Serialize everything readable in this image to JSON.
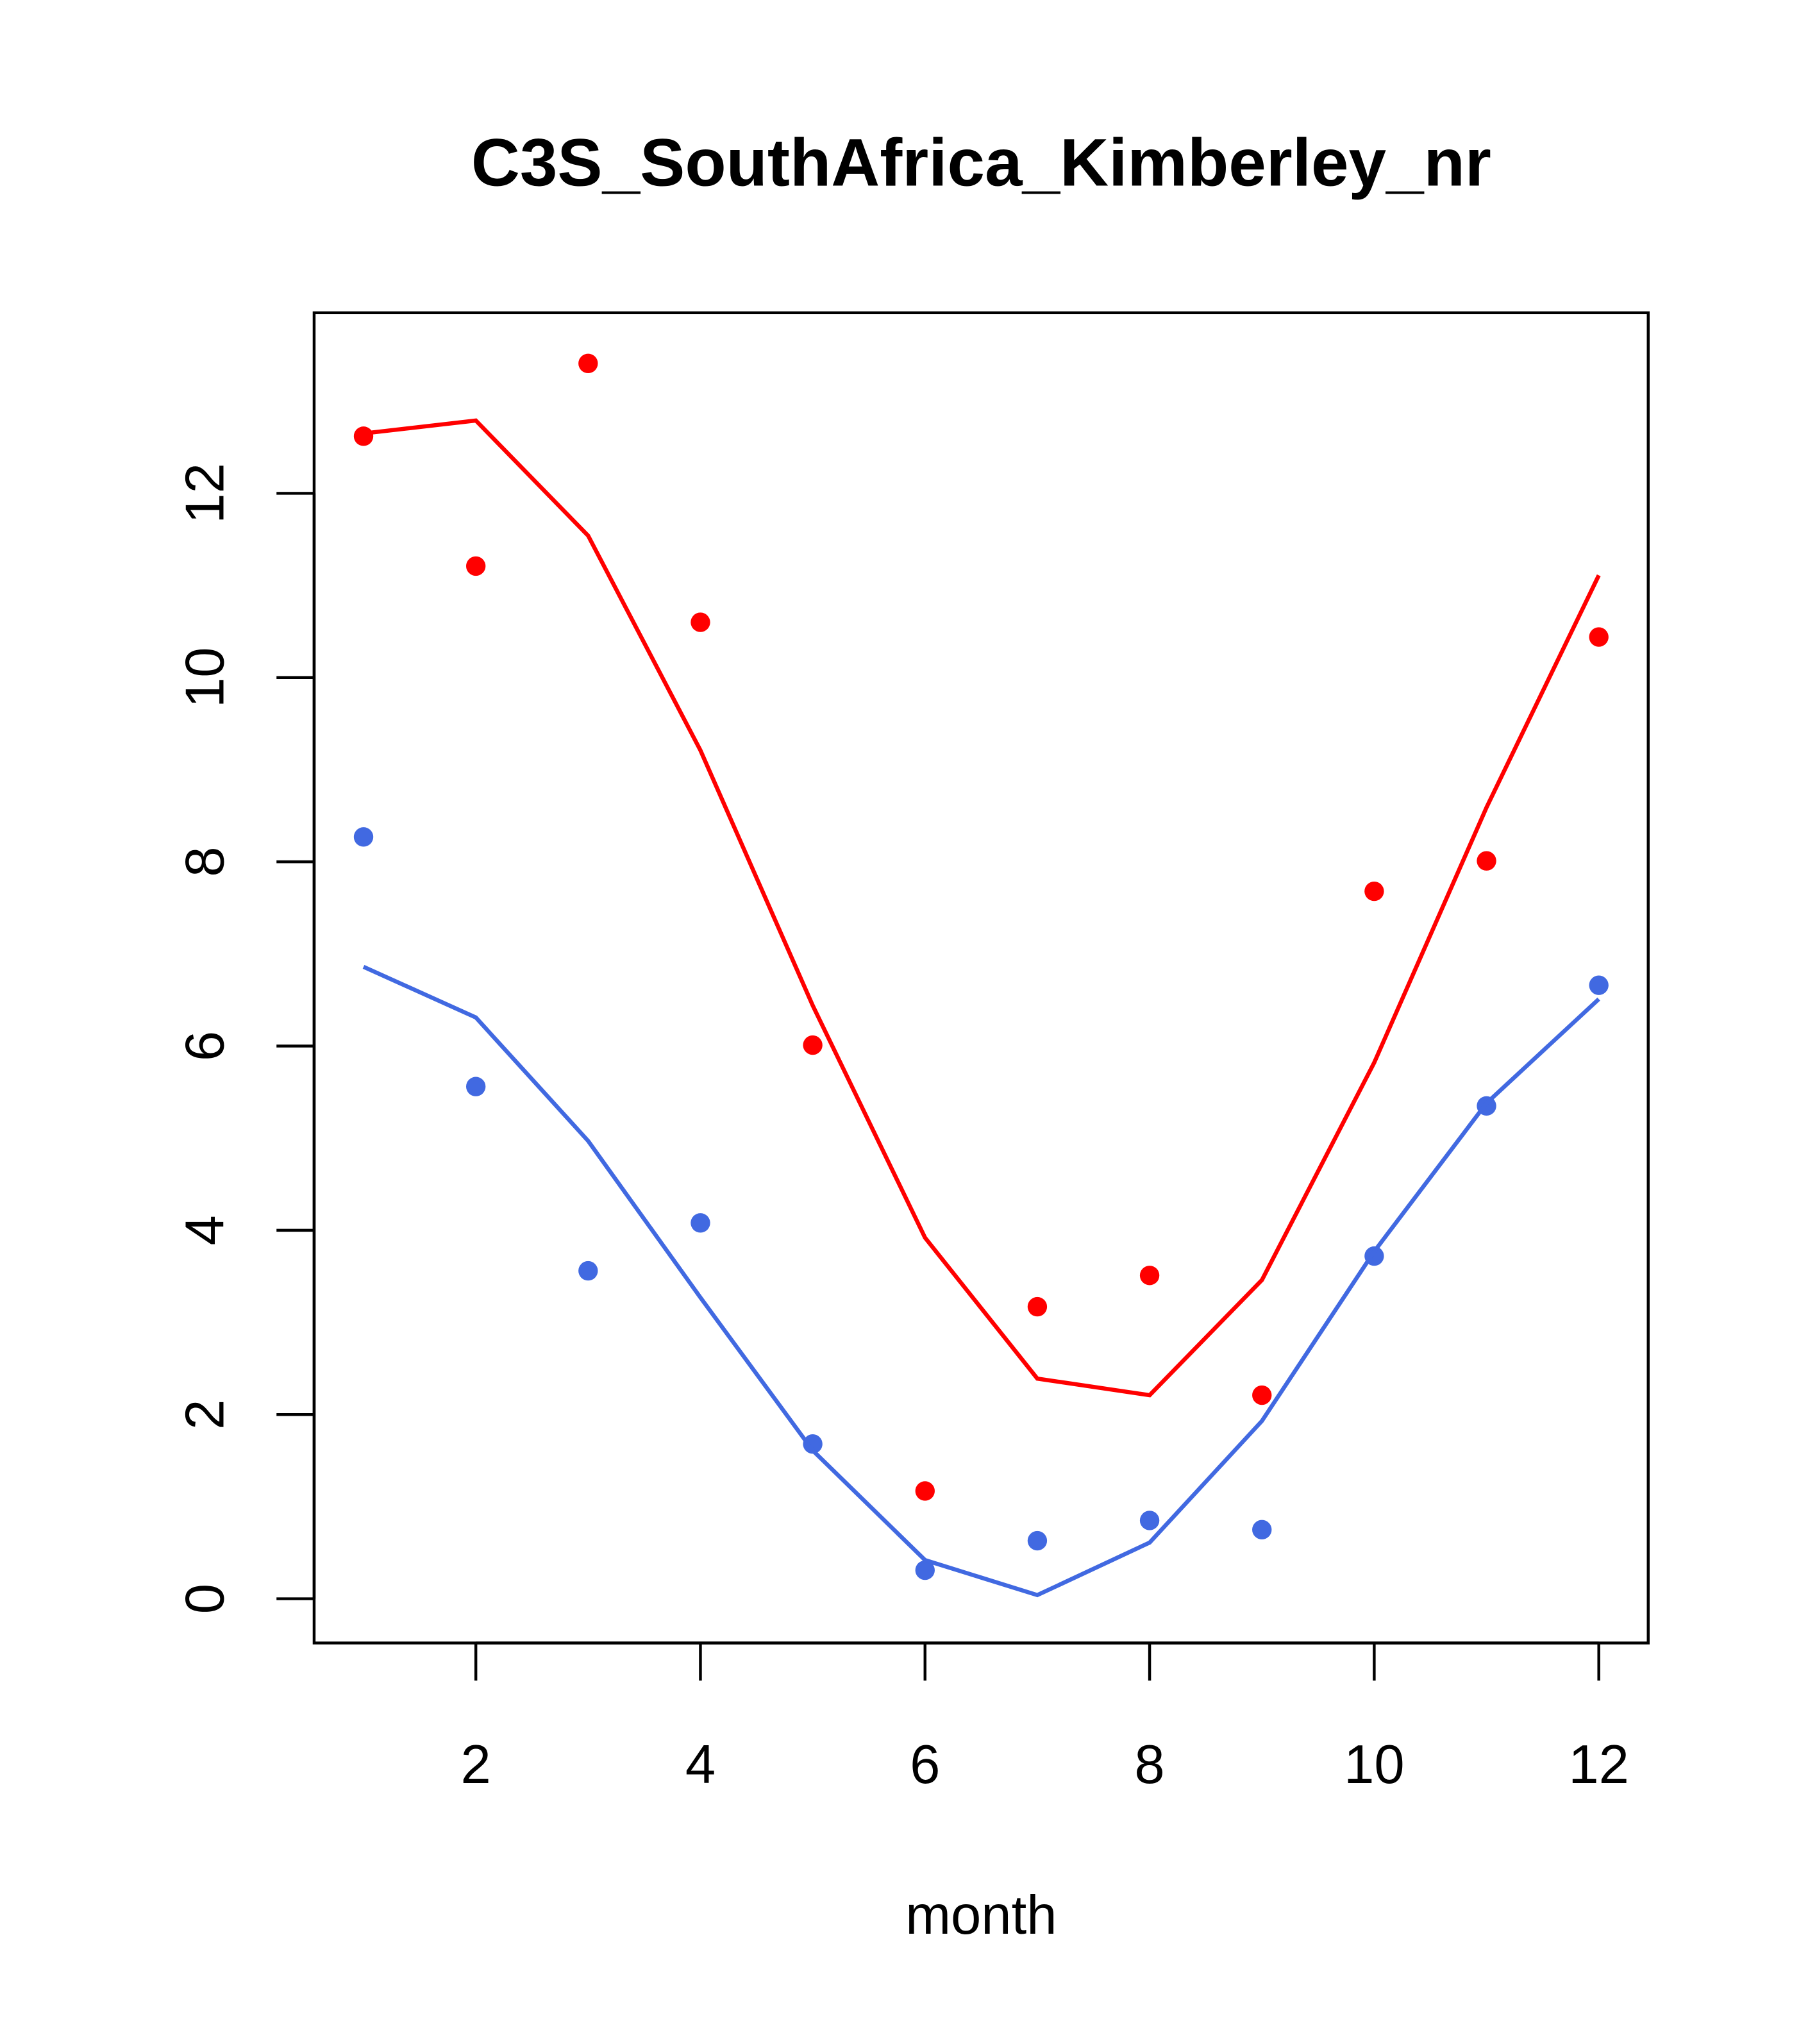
{
  "chart_data": {
    "type": "line",
    "title": "C3S_SouthAfrica_Kimberley_nr",
    "xlabel": "month",
    "ylabel": "",
    "xlim": [
      0.56,
      12.44
    ],
    "ylim": [
      -0.48,
      13.96
    ],
    "xticks": [
      2,
      4,
      6,
      8,
      10,
      12
    ],
    "yticks": [
      0,
      2,
      4,
      6,
      8,
      10,
      12
    ],
    "grid": false,
    "x": [
      1,
      2,
      3,
      4,
      5,
      6,
      7,
      8,
      9,
      10,
      11,
      12
    ],
    "series": [
      {
        "name": "red points",
        "kind": "points",
        "color": "#ff0000",
        "values": [
          12.62,
          11.21,
          13.41,
          10.6,
          6.01,
          1.17,
          3.17,
          3.51,
          2.21,
          7.68,
          8.01,
          10.44
        ]
      },
      {
        "name": "red line",
        "kind": "line",
        "color": "#ff0000",
        "values": [
          12.65,
          12.79,
          11.54,
          9.21,
          6.44,
          3.92,
          2.39,
          2.21,
          3.46,
          5.82,
          8.59,
          11.11
        ]
      },
      {
        "name": "blue points",
        "kind": "points",
        "color": "#4169e1",
        "values": [
          8.27,
          5.56,
          3.56,
          4.08,
          1.68,
          0.31,
          0.63,
          0.85,
          0.75,
          3.72,
          5.35,
          6.66
        ]
      },
      {
        "name": "blue line",
        "kind": "line",
        "color": "#4169e1",
        "values": [
          6.86,
          6.31,
          4.97,
          3.27,
          1.61,
          0.42,
          0.04,
          0.61,
          1.93,
          3.77,
          5.38,
          6.51
        ]
      }
    ]
  }
}
